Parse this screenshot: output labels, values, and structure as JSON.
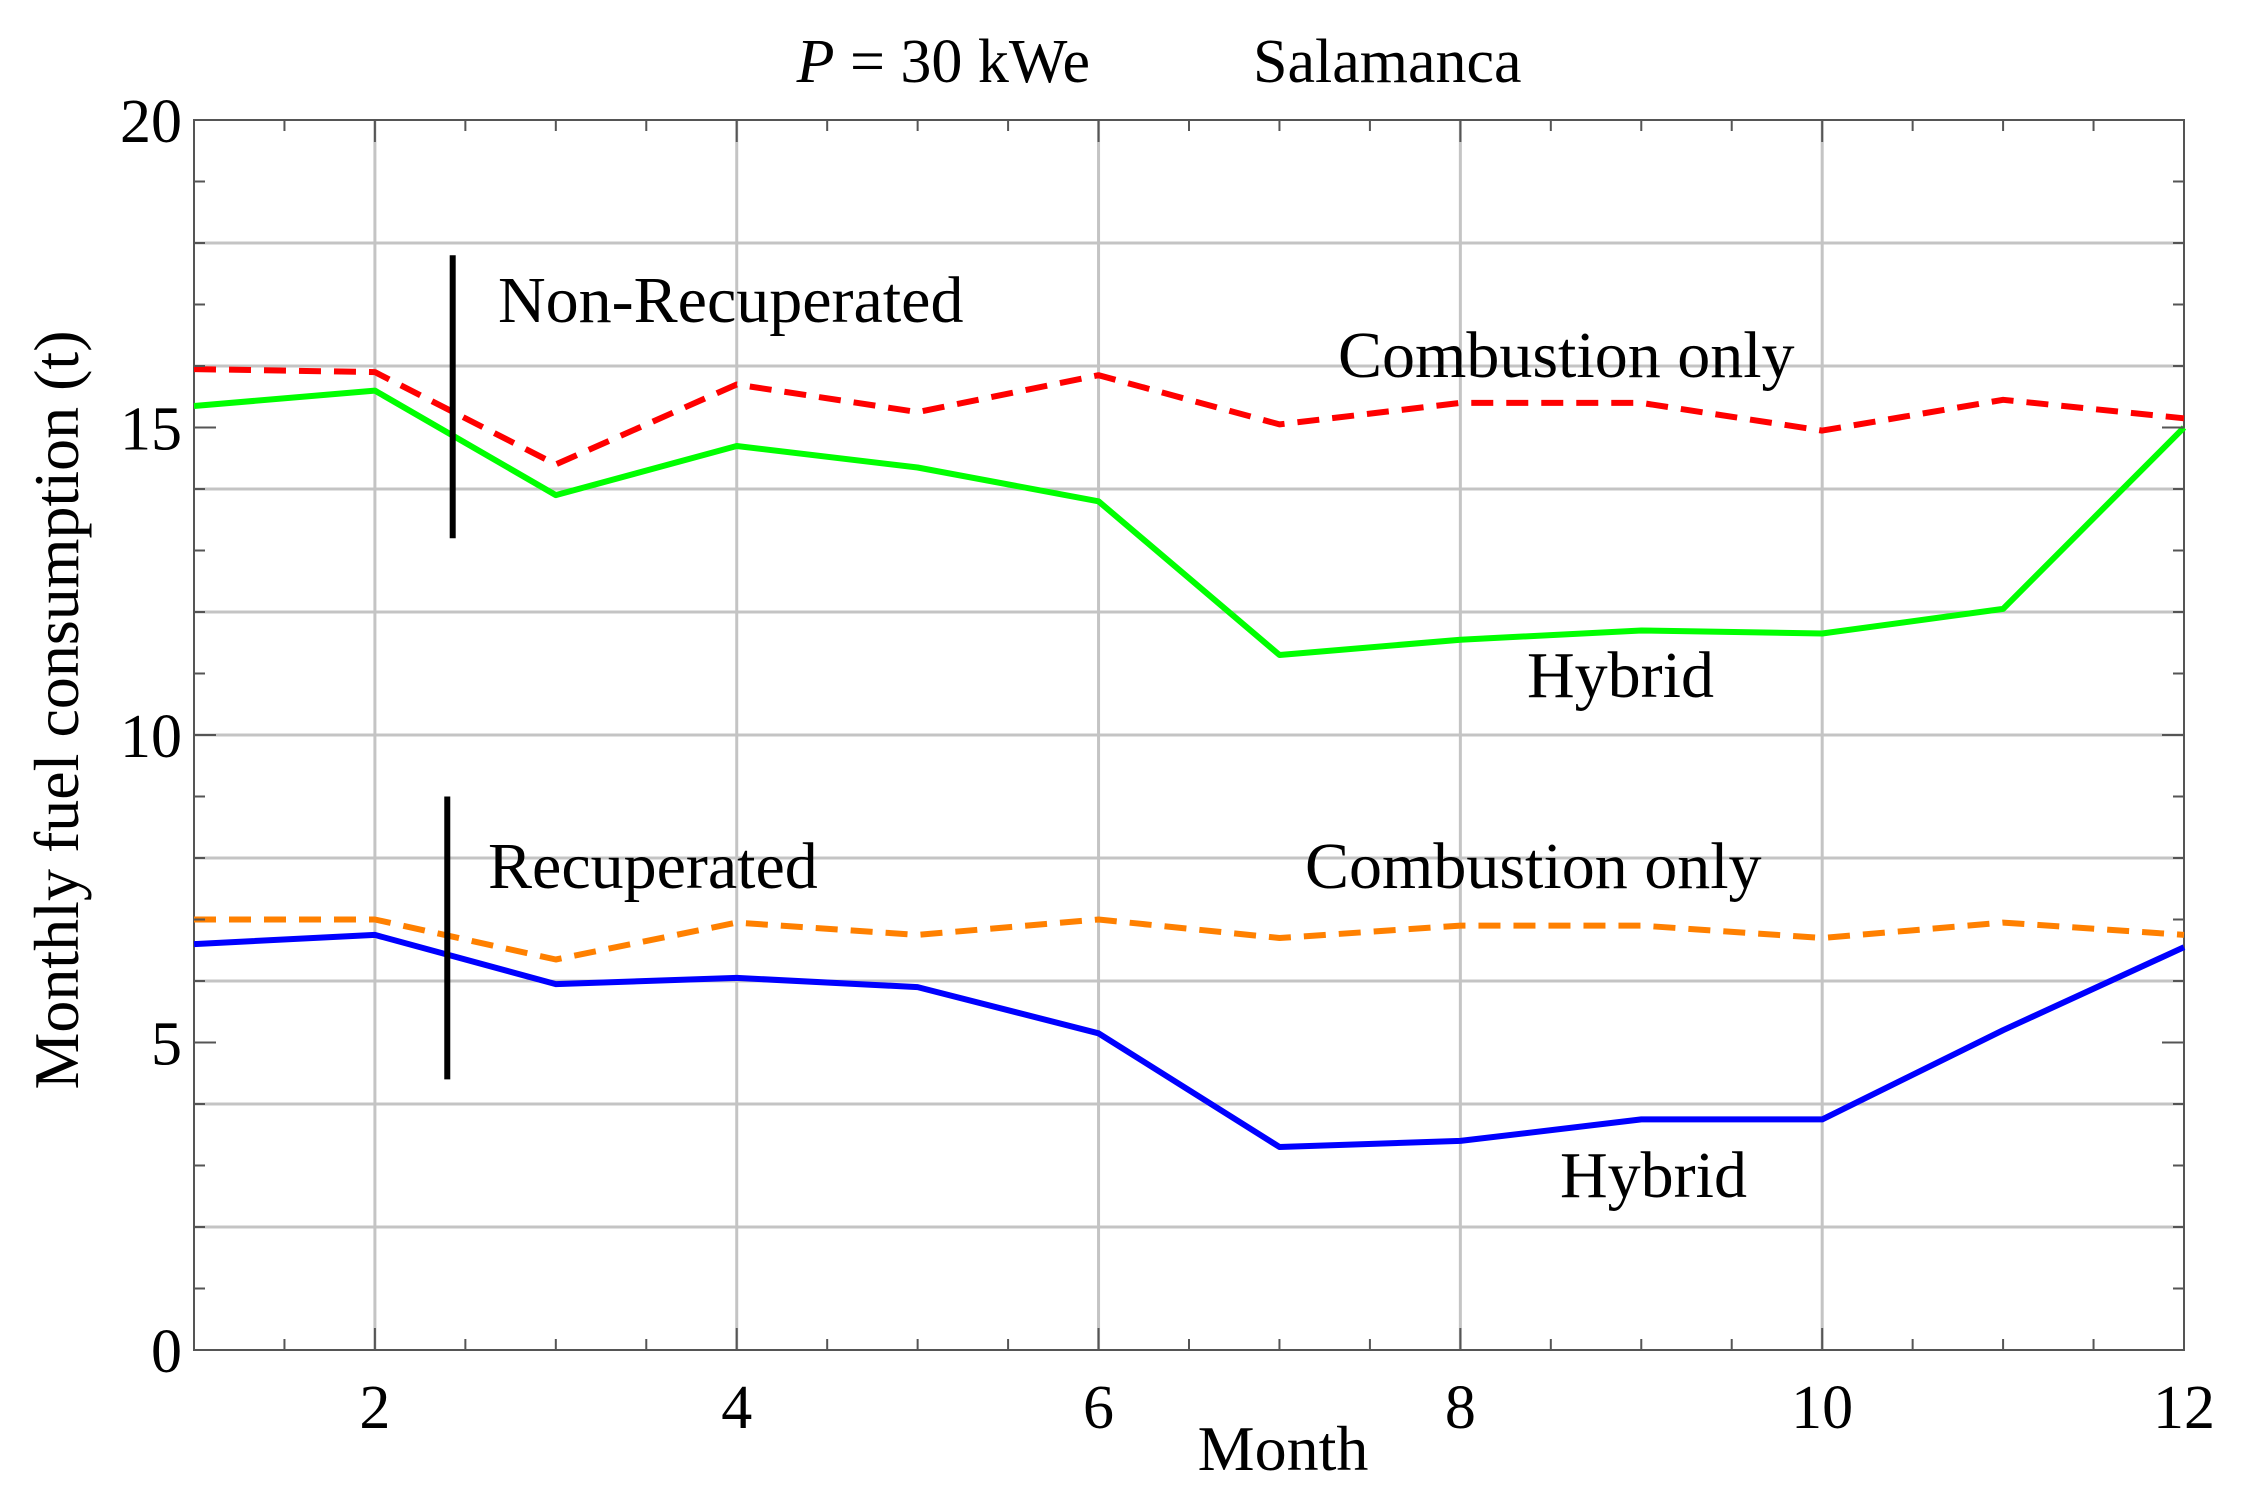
{
  "chart_data": {
    "type": "line",
    "title": {
      "left_symbol": "P",
      "left_value": " = 30 kWe",
      "location": "Salamanca"
    },
    "xlabel": "Month",
    "ylabel": "Monthly fuel consumption (t)",
    "xlim": [
      1,
      12
    ],
    "ylim": [
      0,
      20
    ],
    "x_ticks": [
      2,
      4,
      6,
      8,
      10,
      12
    ],
    "y_ticks": [
      0,
      5,
      10,
      15,
      20
    ],
    "grid": true,
    "x": [
      1,
      2,
      3,
      4,
      5,
      6,
      7,
      8,
      9,
      10,
      11,
      12
    ],
    "series": [
      {
        "name": "Non-Recuperated Combustion only",
        "color": "#ff0000",
        "style": "dashed",
        "values": [
          15.95,
          15.9,
          14.4,
          15.7,
          15.25,
          15.85,
          15.05,
          15.4,
          15.4,
          14.95,
          15.45,
          15.15
        ]
      },
      {
        "name": "Non-Recuperated Hybrid",
        "color": "#00ff00",
        "style": "solid",
        "values": [
          15.35,
          15.6,
          13.9,
          14.7,
          14.35,
          13.8,
          11.3,
          11.55,
          11.7,
          11.65,
          12.05,
          15.0
        ]
      },
      {
        "name": "Recuperated Combustion only",
        "color": "#ff8000",
        "style": "dashed",
        "values": [
          7.0,
          7.0,
          6.35,
          6.95,
          6.75,
          7.0,
          6.7,
          6.9,
          6.9,
          6.7,
          6.95,
          6.75
        ]
      },
      {
        "name": "Recuperated Hybrid",
        "color": "#0000ff",
        "style": "solid",
        "values": [
          6.6,
          6.75,
          5.95,
          6.05,
          5.9,
          5.15,
          3.3,
          3.4,
          3.75,
          3.75,
          5.2,
          6.55
        ]
      }
    ],
    "annotations": [
      {
        "id": "non_recuperated_label",
        "text": "Non-Recuperated"
      },
      {
        "id": "non_recuperated_combustion",
        "text": "Combustion only"
      },
      {
        "id": "non_recuperated_hybrid",
        "text": "Hybrid"
      },
      {
        "id": "recuperated_label",
        "text": "Recuperated"
      },
      {
        "id": "recuperated_combustion",
        "text": "Combustion only"
      },
      {
        "id": "recuperated_hybrid",
        "text": "Hybrid"
      }
    ],
    "marker_lines": [
      {
        "id": "non_recuperated_marker",
        "x": 2.43,
        "y_range": [
          13.2,
          17.8
        ]
      },
      {
        "id": "recuperated_marker",
        "x": 2.4,
        "y_range": [
          4.4,
          9.0
        ]
      }
    ]
  }
}
